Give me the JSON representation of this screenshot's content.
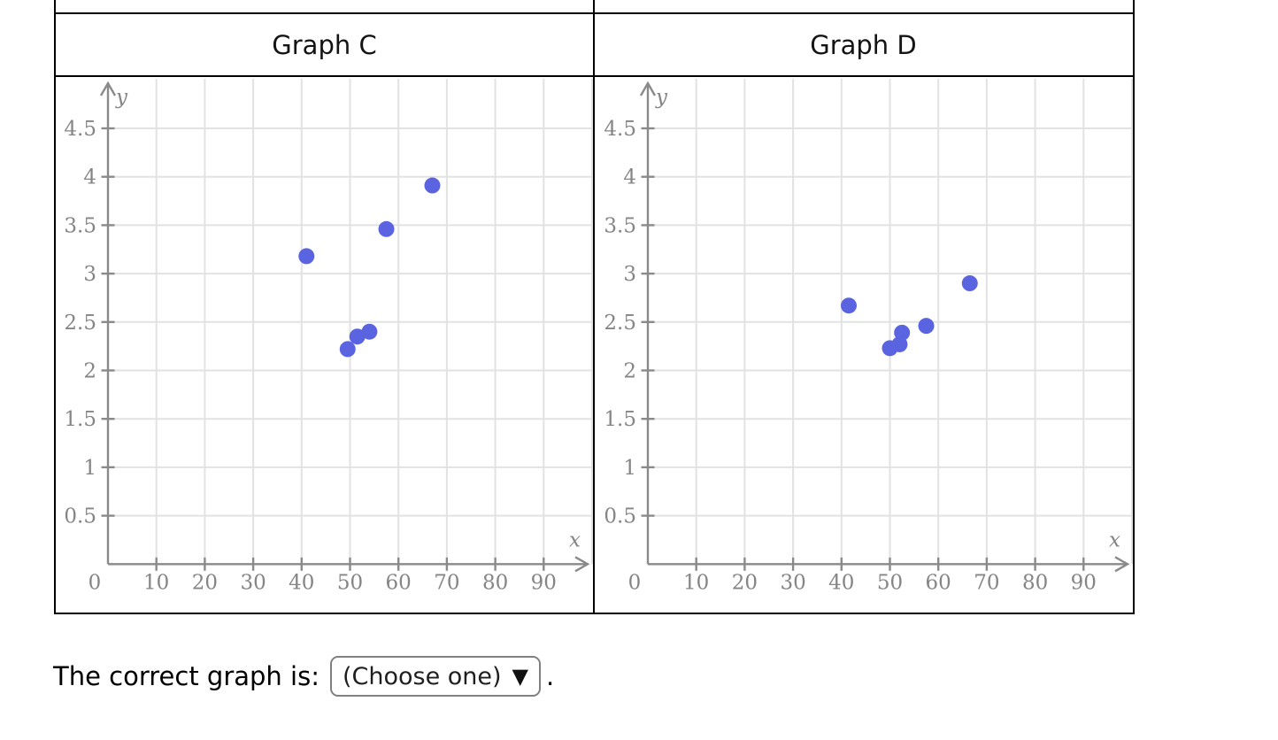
{
  "colors": {
    "point": "#5a63e0",
    "axis": "#8a8a8a",
    "tick_label": "#858585",
    "grid": "#e2e2e2",
    "table_border": "#000000"
  },
  "question": {
    "prompt": "The correct graph is:",
    "dropdown_value": "(Choose one)",
    "dropdown_arrow": "▼",
    "suffix": "."
  },
  "chart_data": [
    {
      "type": "scatter",
      "title": "Graph C",
      "xlabel": "x",
      "ylabel": "y",
      "origin_label": "0",
      "xlim": [
        0,
        100
      ],
      "ylim": [
        0,
        5
      ],
      "x_ticks": [
        10,
        20,
        30,
        40,
        50,
        60,
        70,
        80,
        90
      ],
      "y_ticks": [
        0.5,
        1,
        1.5,
        2,
        2.5,
        3,
        3.5,
        4,
        4.5
      ],
      "grid": true,
      "legend": false,
      "points": [
        [
          41,
          3.18
        ],
        [
          49.5,
          2.22
        ],
        [
          51.5,
          2.35
        ],
        [
          54,
          2.4
        ],
        [
          57.5,
          3.46
        ],
        [
          67,
          3.91
        ]
      ]
    },
    {
      "type": "scatter",
      "title": "Graph D",
      "xlabel": "x",
      "ylabel": "y",
      "origin_label": "0",
      "xlim": [
        0,
        100
      ],
      "ylim": [
        0,
        5
      ],
      "x_ticks": [
        10,
        20,
        30,
        40,
        50,
        60,
        70,
        80,
        90
      ],
      "y_ticks": [
        0.5,
        1,
        1.5,
        2,
        2.5,
        3,
        3.5,
        4,
        4.5
      ],
      "grid": true,
      "legend": false,
      "points": [
        [
          41.5,
          2.67
        ],
        [
          50,
          2.23
        ],
        [
          52,
          2.27
        ],
        [
          52.5,
          2.39
        ],
        [
          57.5,
          2.46
        ],
        [
          66.5,
          2.9
        ]
      ]
    }
  ]
}
